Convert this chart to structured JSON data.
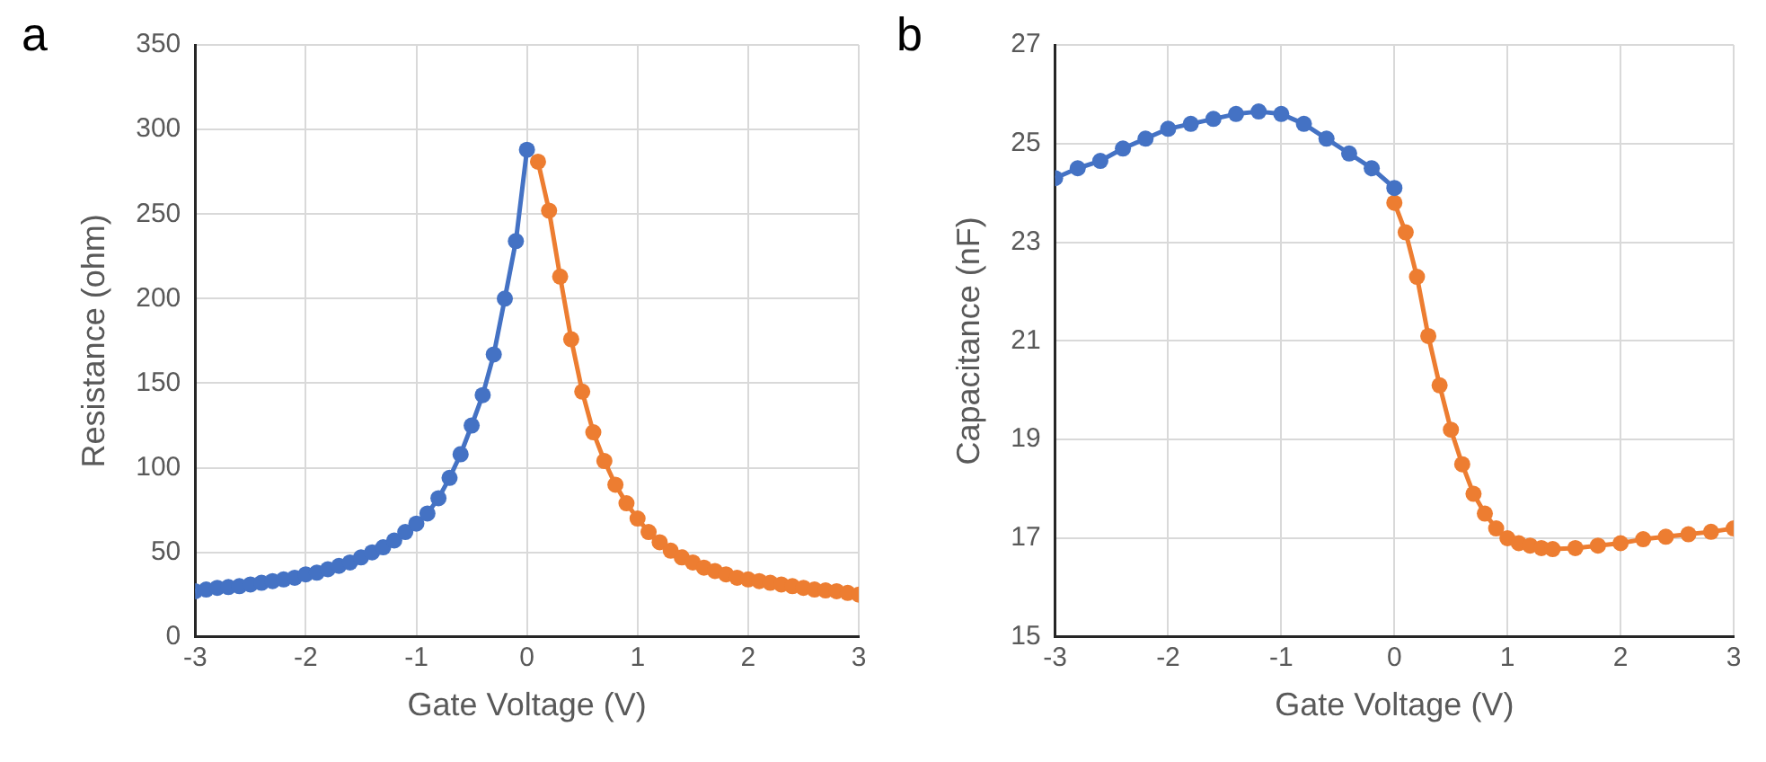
{
  "chart_data": [
    {
      "type": "line",
      "xlabel": "Gate Voltage (V)",
      "ylabel": "Resistance (ohm)",
      "annotations": [
        "a"
      ],
      "xlim": [
        -3,
        3
      ],
      "xticks": [
        -3,
        -2,
        -1,
        0,
        1,
        2,
        3
      ],
      "ylim": [
        0,
        350
      ],
      "yticks": [
        0,
        50,
        100,
        150,
        200,
        250,
        300,
        350
      ],
      "grid": true,
      "marker": "circle",
      "line_style": "solid",
      "series": [
        {
          "color": "#4472c4",
          "x": [
            -3,
            -2.9,
            -2.8,
            -2.7,
            -2.6,
            -2.5,
            -2.4,
            -2.3,
            -2.2,
            -2.1,
            -2,
            -1.9,
            -1.8,
            -1.7,
            -1.6,
            -1.5,
            -1.4,
            -1.3,
            -1.2,
            -1.1,
            -1,
            -0.9,
            -0.8,
            -0.7,
            -0.6,
            -0.5,
            -0.4,
            -0.3,
            -0.2,
            -0.1,
            0
          ],
          "values": [
            27,
            28,
            29,
            29.5,
            30,
            31,
            32,
            33,
            34,
            35,
            37,
            38,
            40,
            42,
            44,
            47,
            50,
            53,
            57,
            62,
            67,
            73,
            82,
            94,
            108,
            125,
            143,
            167,
            200,
            234,
            288
          ]
        },
        {
          "color": "#ed7d31",
          "x": [
            0.1,
            0.2,
            0.3,
            0.4,
            0.5,
            0.6,
            0.7,
            0.8,
            0.9,
            1,
            1.1,
            1.2,
            1.3,
            1.4,
            1.5,
            1.6,
            1.7,
            1.8,
            1.9,
            2,
            2.1,
            2.2,
            2.3,
            2.4,
            2.5,
            2.6,
            2.7,
            2.8,
            2.9,
            3
          ],
          "values": [
            281,
            252,
            213,
            176,
            145,
            121,
            104,
            90,
            79,
            70,
            62,
            56,
            51,
            47,
            44,
            41,
            39,
            37,
            35,
            34,
            33,
            32,
            31,
            30,
            29,
            28,
            27.5,
            27,
            26,
            25
          ]
        }
      ]
    },
    {
      "type": "line",
      "xlabel": "Gate Voltage (V)",
      "ylabel": "Capacitance (nF)",
      "annotations": [
        "b"
      ],
      "xlim": [
        -3,
        3
      ],
      "xticks": [
        -3,
        -2,
        -1,
        0,
        1,
        2,
        3
      ],
      "ylim": [
        15,
        27
      ],
      "yticks": [
        15,
        17,
        19,
        21,
        23,
        25,
        27
      ],
      "grid": true,
      "marker": "circle",
      "line_style": "solid",
      "series": [
        {
          "color": "#4472c4",
          "x": [
            -3,
            -2.8,
            -2.6,
            -2.4,
            -2.2,
            -2,
            -1.8,
            -1.6,
            -1.4,
            -1.2,
            -1,
            -0.8,
            -0.6,
            -0.4,
            -0.2,
            0
          ],
          "values": [
            24.3,
            24.5,
            24.65,
            24.9,
            25.1,
            25.3,
            25.4,
            25.5,
            25.6,
            25.65,
            25.6,
            25.4,
            25.1,
            24.8,
            24.5,
            24.1
          ]
        },
        {
          "color": "#ed7d31",
          "x": [
            0,
            0.1,
            0.2,
            0.3,
            0.4,
            0.5,
            0.6,
            0.7,
            0.8,
            0.9,
            1,
            1.1,
            1.2,
            1.3,
            1.4,
            1.6,
            1.8,
            2,
            2.2,
            2.4,
            2.6,
            2.8,
            3
          ],
          "values": [
            23.8,
            23.2,
            22.3,
            21.1,
            20.1,
            19.2,
            18.5,
            17.9,
            17.5,
            17.2,
            17,
            16.9,
            16.85,
            16.8,
            16.78,
            16.8,
            16.85,
            16.9,
            16.98,
            17.03,
            17.08,
            17.13,
            17.2
          ]
        }
      ]
    }
  ]
}
